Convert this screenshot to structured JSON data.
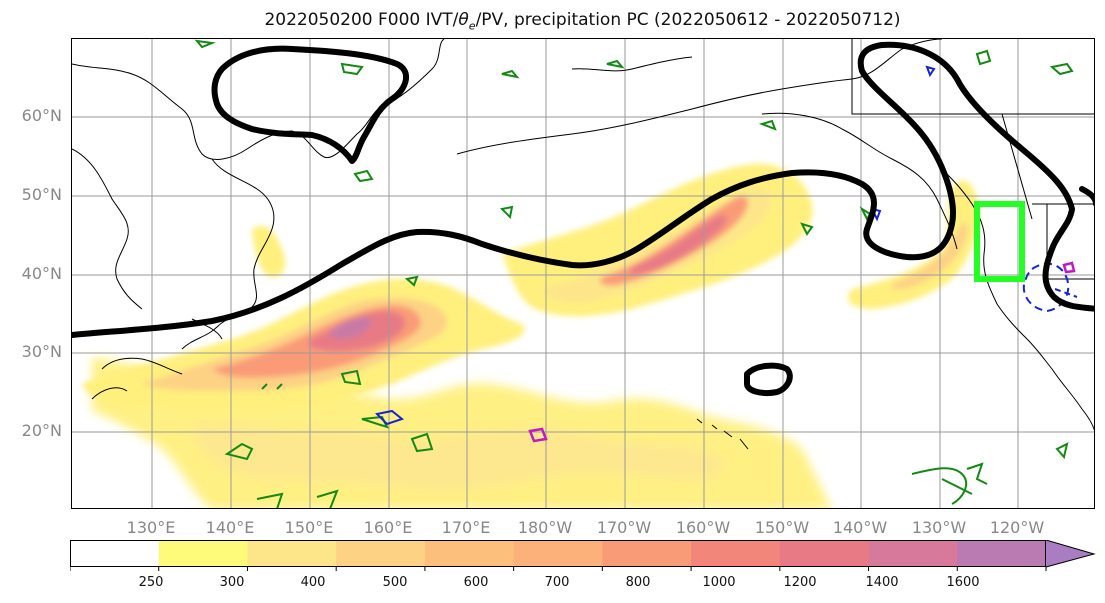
{
  "title": "2022050200 F000 IVT/θe/PV, precipitation PC (2022050612 - 2022050712)",
  "lat_labels": [
    "60°N",
    "50°N",
    "40°N",
    "30°N",
    "20°N"
  ],
  "lon_labels": [
    "130°E",
    "140°E",
    "150°E",
    "160°E",
    "170°E",
    "180°W",
    "170°W",
    "160°W",
    "150°W",
    "140°W",
    "130°W",
    "120°W"
  ],
  "colorbar": {
    "ticks": [
      "250",
      "300",
      "400",
      "500",
      "600",
      "700",
      "800",
      "1000",
      "1200",
      "1400",
      "1600"
    ],
    "colors": [
      "#ffffff",
      "#fffb7a",
      "#fde68a",
      "#fdd285",
      "#fdc07c",
      "#fcb17a",
      "#fa9b78",
      "#f3867a",
      "#e77a85",
      "#d6799a",
      "#b97bb2",
      "#a97dc2"
    ]
  },
  "colors": {
    "land_outline": "#000000",
    "grid": "#9a9a9a",
    "pv_contour": "#000000",
    "green_contour": "#138a13",
    "blue_contour": "#1524d6",
    "magenta_contour": "#c21ac2",
    "highlight_box": "#22ff22"
  }
}
